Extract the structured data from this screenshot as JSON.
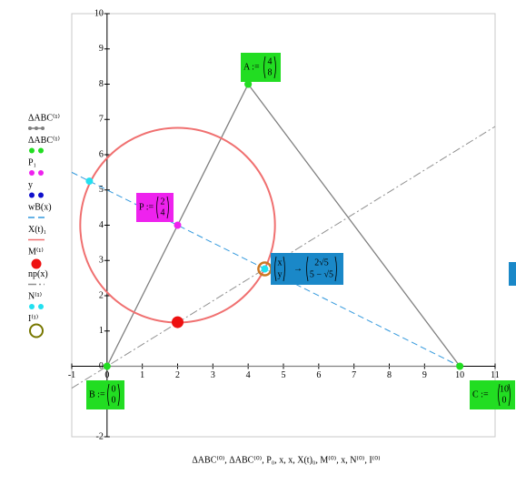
{
  "chart_data": {
    "type": "xy-plot",
    "xlabel": "ΔABC⁽⁰⁾, ΔABC⁽⁰⁾, P₀, x, x, X(t)₀, M⁽⁰⁾, x, N⁽⁰⁾, I⁽⁰⁾",
    "xlim": [
      -1,
      11
    ],
    "ylim": [
      -2,
      10
    ],
    "xticks": [
      -1,
      0,
      1,
      2,
      3,
      4,
      5,
      6,
      7,
      8,
      9,
      10,
      11
    ],
    "yticks": [
      -2,
      -1,
      0,
      1,
      2,
      3,
      4,
      5,
      6,
      7,
      8,
      9,
      10
    ],
    "series": [
      {
        "name": "ΔABC⁽¹⁾",
        "kind": "line",
        "line_style": "solid",
        "color": "#808080",
        "x": [
          4,
          0,
          10,
          4
        ],
        "y": [
          8,
          0,
          0,
          8
        ]
      },
      {
        "name": "ΔABC⁽¹⁾",
        "kind": "points",
        "marker": "dot",
        "color": "#22dd22",
        "x": [
          4,
          0,
          10,
          4
        ],
        "y": [
          8,
          0,
          0,
          8
        ]
      },
      {
        "name": "P₁",
        "kind": "points",
        "marker": "dot",
        "color": "#ee22ee",
        "x": [
          2
        ],
        "y": [
          4
        ]
      },
      {
        "name": "y",
        "kind": "points",
        "marker": "dot",
        "color": "#1010cc",
        "x": [],
        "y": []
      },
      {
        "name": "wB(x)",
        "kind": "line",
        "line_style": "dashed",
        "color": "#3399dd",
        "x": [
          -1,
          10
        ],
        "y": [
          5.5,
          0
        ]
      },
      {
        "name": "X(t)₁",
        "kind": "circle",
        "color": "#f07070",
        "center": [
          2,
          4
        ],
        "radius": 2.76
      },
      {
        "name": "M⁽¹⁾",
        "kind": "points",
        "marker": "large-dot",
        "color": "#ee1111",
        "x": [
          2
        ],
        "y": [
          1.25
        ]
      },
      {
        "name": "np(x)",
        "kind": "line",
        "line_style": "dash-dot",
        "color": "#909090",
        "x": [
          -1,
          11
        ],
        "y": [
          -0.62,
          6.8
        ]
      },
      {
        "name": "N⁽¹⁾",
        "kind": "points",
        "marker": "dot",
        "color": "#22e0f0",
        "x": [
          -0.5,
          4.47
        ],
        "y": [
          5.25,
          2.76
        ]
      },
      {
        "name": "I⁽¹⁾",
        "kind": "points",
        "marker": "ring",
        "color": "#cc7722",
        "x": [
          4.47
        ],
        "y": [
          2.76
        ]
      }
    ],
    "annotations": [
      {
        "text": "A :=",
        "matrix": [
          4,
          8
        ],
        "color": "#22dd22"
      },
      {
        "text": "B :=",
        "matrix": [
          0,
          0
        ],
        "color": "#22dd22"
      },
      {
        "text": "C :=",
        "matrix": [
          10,
          0
        ],
        "color": "#22dd22"
      },
      {
        "text": "P :=",
        "matrix": [
          2,
          4
        ],
        "color": "#ee22ee"
      },
      {
        "text": "→",
        "matrix": [
          "x",
          "y"
        ],
        "result": [
          "2√5",
          "5 − √5"
        ],
        "color": "#1a88c8"
      }
    ]
  }
}
